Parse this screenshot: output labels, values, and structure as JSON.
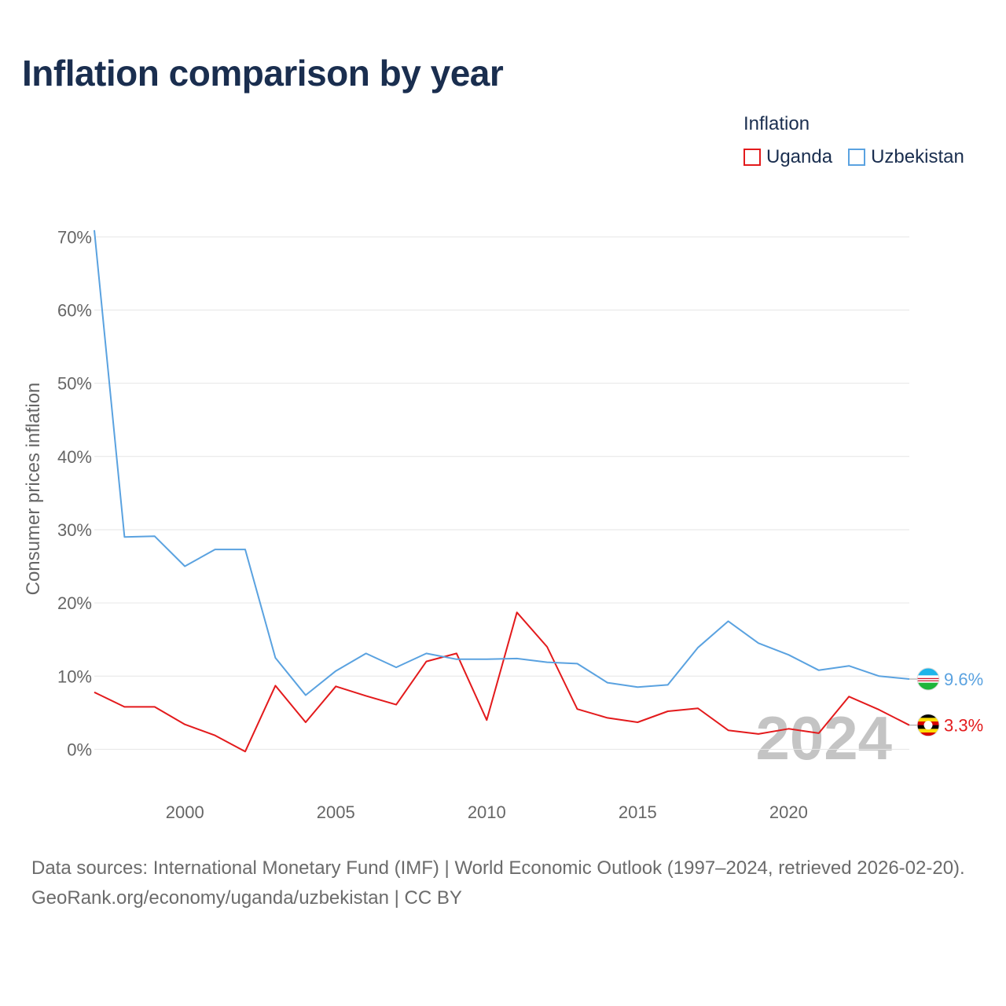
{
  "chart_data": {
    "type": "line",
    "title": "Inflation comparison by year",
    "ylabel": "Consumer prices inflation",
    "xlabel": "",
    "legend_title": "Inflation",
    "legend_position": "top-right",
    "x": [
      1997,
      1998,
      1999,
      2000,
      2001,
      2002,
      2003,
      2004,
      2005,
      2006,
      2007,
      2008,
      2009,
      2010,
      2011,
      2012,
      2013,
      2014,
      2015,
      2016,
      2017,
      2018,
      2019,
      2020,
      2021,
      2022,
      2023,
      2024
    ],
    "xlim": [
      1997,
      2024
    ],
    "ylim": [
      -5,
      71
    ],
    "x_ticks": [
      2000,
      2005,
      2010,
      2015,
      2020
    ],
    "x_tick_labels": [
      "2000",
      "2005",
      "2010",
      "2015",
      "2020"
    ],
    "y_ticks": [
      0,
      10,
      20,
      30,
      40,
      50,
      60,
      70
    ],
    "y_tick_labels": [
      "0%",
      "10%",
      "20%",
      "30%",
      "40%",
      "50%",
      "60%",
      "70%"
    ],
    "grid": true,
    "year_watermark": "2024",
    "series": [
      {
        "name": "Uganda",
        "color": "#e31a1c",
        "end_label": "3.3%",
        "flag_icon": "uganda-flag-icon",
        "values": [
          7.8,
          5.8,
          5.8,
          3.4,
          1.9,
          -0.3,
          8.7,
          3.7,
          8.6,
          7.3,
          6.1,
          12.0,
          13.1,
          4.0,
          18.7,
          14.0,
          5.5,
          4.3,
          3.7,
          5.2,
          5.6,
          2.6,
          2.1,
          2.8,
          2.2,
          7.2,
          5.4,
          3.3
        ]
      },
      {
        "name": "Uzbekistan",
        "color": "#5aa2e0",
        "end_label": "9.6%",
        "flag_icon": "uzbekistan-flag-icon",
        "values": [
          70.9,
          29.0,
          29.1,
          25.0,
          27.3,
          27.3,
          12.5,
          7.4,
          10.7,
          13.1,
          11.2,
          13.1,
          12.3,
          12.3,
          12.4,
          11.9,
          11.7,
          9.1,
          8.5,
          8.8,
          13.9,
          17.5,
          14.5,
          12.9,
          10.8,
          11.4,
          10.0,
          9.6
        ]
      }
    ]
  },
  "footer": {
    "sources": "Data sources: International Monetary Fund (IMF) | World Economic Outlook (1997–2024, retrieved 2026-02-20).",
    "credit": "GeoRank.org/economy/uganda/uzbekistan | CC BY"
  }
}
